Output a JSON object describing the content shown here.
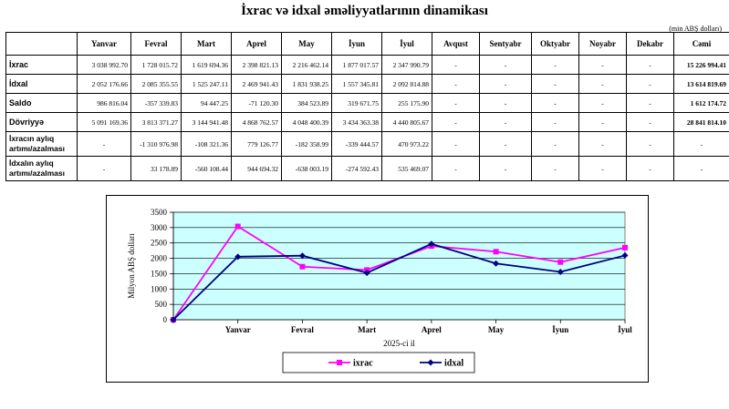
{
  "title": "İxrac və idxal əməliyyatlarının dinamikası",
  "unit": "(min ABŞ dolları)",
  "table": {
    "headers": [
      "",
      "Yanvar",
      "Fevral",
      "Mart",
      "Aprel",
      "May",
      "İyun",
      "İyul",
      "Avqust",
      "Sentyabr",
      "Oktyabr",
      "Noyabr",
      "Dekabr",
      "Cəmi"
    ],
    "rows": [
      {
        "label": "İxrac",
        "cells": [
          "3 038 992.70",
          "1 728 015.72",
          "1 619 694.36",
          "2 398 821.13",
          "2 216 462.14",
          "1 877 017.57",
          "2 347 990.79",
          "-",
          "-",
          "-",
          "-",
          "-",
          "15 226 994.41"
        ]
      },
      {
        "label": "İdxal",
        "cells": [
          "2 052 176.66",
          "2 085 355.55",
          "1 525 247.11",
          "2 469 941.43",
          "1 831 938.25",
          "1 557 345.81",
          "2 092 814.88",
          "-",
          "-",
          "-",
          "-",
          "-",
          "13 614 819.69"
        ]
      },
      {
        "label": "Saldo",
        "cells": [
          "986 816.04",
          "-357 339.83",
          "94 447.25",
          "-71 120.30",
          "384 523.89",
          "319 671.75",
          "255 175.90",
          "-",
          "-",
          "-",
          "-",
          "-",
          "1 612 174.72"
        ]
      },
      {
        "label": "Dövriyyə",
        "cells": [
          "5 091 169.36",
          "3 813 371.27",
          "3 144 941.48",
          "4 868 762.57",
          "4 048 400.39",
          "3 434 363.38",
          "4 440 805.67",
          "-",
          "-",
          "-",
          "-",
          "-",
          "28 841 814.10"
        ]
      },
      {
        "label": "İxracın aylıq artımı/azalması",
        "cells": [
          "-",
          "-1 310 976.98",
          "-108 321.36",
          "779 126.77",
          "-182 358.99",
          "-339 444.57",
          "470 973.22",
          "-",
          "-",
          "-",
          "-",
          "-",
          "-"
        ]
      },
      {
        "label": "İdxalın aylıq artımı/azalması",
        "cells": [
          "-",
          "33 178.89",
          "-560 108.44",
          "944 694.32",
          "-638 003.19",
          "-274 592.43",
          "535 469.07",
          "-",
          "-",
          "-",
          "-",
          "-",
          "-"
        ]
      }
    ]
  },
  "chart_data": {
    "type": "line",
    "categories": [
      "",
      "Yanvar",
      "Fevral",
      "Mart",
      "Aprel",
      "May",
      "İyun",
      "İyul"
    ],
    "series": [
      {
        "name": "ixrac",
        "color": "#ff00ff",
        "values": [
          0,
          3039,
          1728,
          1620,
          2399,
          2216,
          1877,
          2348
        ]
      },
      {
        "name": "idxal",
        "color": "#000080",
        "values": [
          0,
          2052,
          2085,
          1525,
          2470,
          1832,
          1557,
          2093
        ]
      }
    ],
    "xlabel": "2025-ci il",
    "ylabel": "Milyon ABŞ dolları",
    "ylim": [
      0,
      3500
    ],
    "yticks": [
      0,
      500,
      1000,
      1500,
      2000,
      2500,
      3000,
      3500
    ],
    "plot_background": "#ccffff",
    "grid": true,
    "legend": "bottom-center"
  }
}
